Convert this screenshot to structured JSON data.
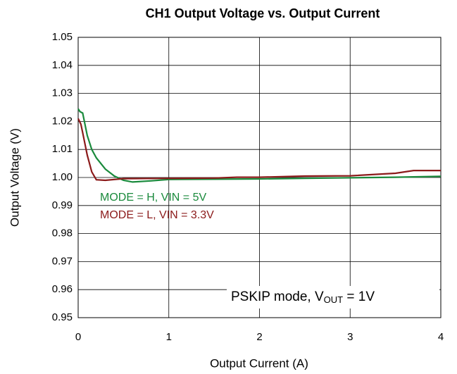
{
  "chart_data": {
    "type": "line",
    "title": "CH1 Output Voltage vs. Output Current",
    "x_label": "Output Current (A)",
    "y_label": "Output Voltage (V)",
    "xlim": [
      0,
      4
    ],
    "xticks": [
      0,
      1,
      2,
      3,
      4
    ],
    "ylim": [
      0.95,
      1.05
    ],
    "yticks": [
      0.95,
      0.96,
      0.97,
      0.98,
      0.99,
      {
        "value": 1.0,
        "label": "1.00"
      },
      1.01,
      1.02,
      1.03,
      1.04,
      1.05
    ],
    "grid": true,
    "series": [
      {
        "name": "MODE = H, VIN = 5V",
        "color": "#1a8a3c",
        "x": [
          0,
          0.02,
          0.05,
          0.1,
          0.15,
          0.2,
          0.3,
          0.4,
          0.5,
          0.6,
          0.8,
          1.0,
          1.5,
          2,
          2.5,
          3,
          3.5,
          4
        ],
        "values": [
          1.0245,
          1.0235,
          1.023,
          1.015,
          1.01,
          1.007,
          1.003,
          1.0005,
          0.999,
          0.9984,
          0.9988,
          0.9993,
          0.9994,
          0.9995,
          0.9997,
          0.9999,
          1.0001,
          1.0004
        ]
      },
      {
        "name": "MODE = L, VIN = 3.3V",
        "color": "#8b1a1a",
        "x": [
          0,
          0.03,
          0.05,
          0.1,
          0.15,
          0.2,
          0.3,
          0.5,
          1,
          1.5,
          1.75,
          2,
          2.5,
          3,
          3.5,
          3.7,
          4
        ],
        "values": [
          1.021,
          1.019,
          1.016,
          1.008,
          1.002,
          0.9992,
          0.999,
          0.9996,
          0.9997,
          0.9998,
          1.0001,
          1.0001,
          1.0005,
          1.0006,
          1.0015,
          1.0025,
          1.0025
        ]
      }
    ],
    "annotation": [
      {
        "text": "PSKIP mode, V"
      },
      {
        "text": "OUT",
        "sub": true
      },
      {
        "text": " = 1V"
      }
    ]
  }
}
